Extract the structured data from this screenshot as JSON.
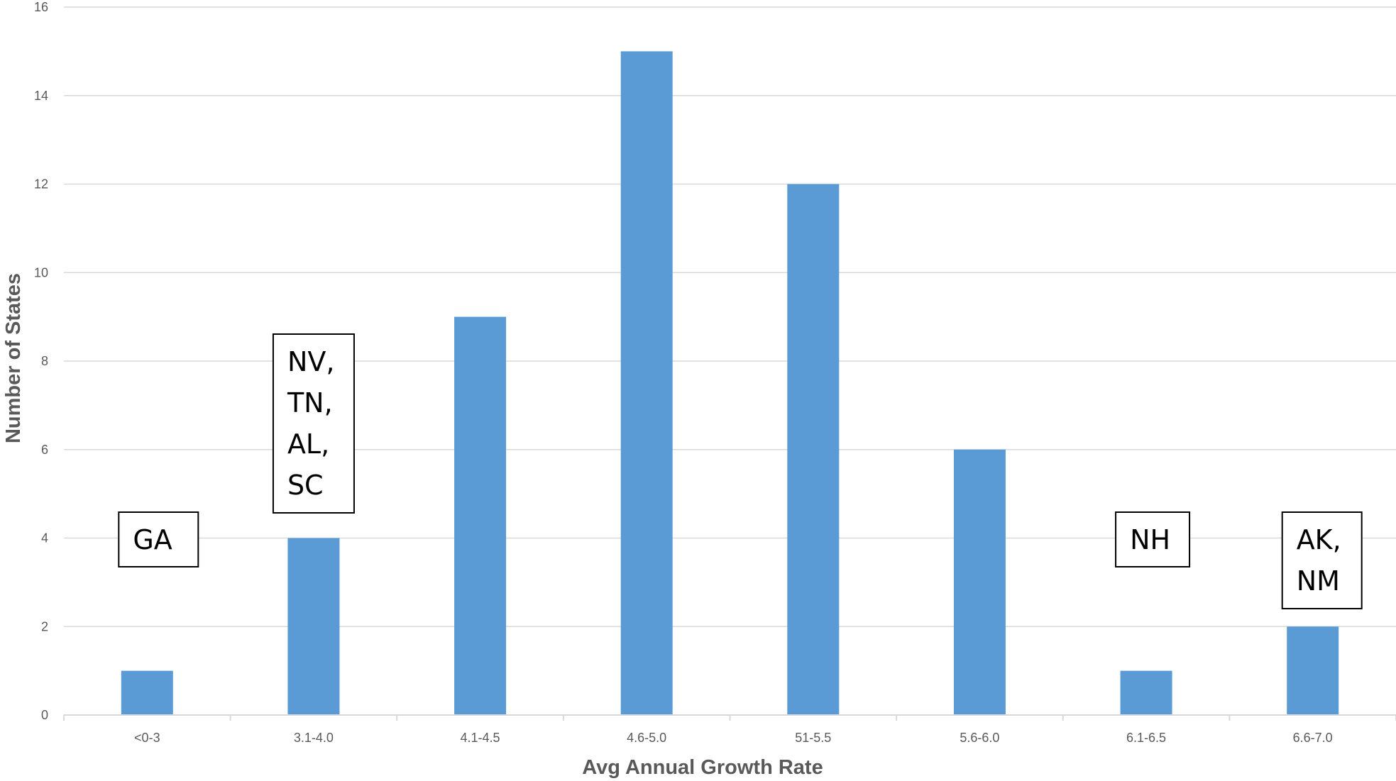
{
  "chart_data": {
    "type": "bar",
    "categories": [
      "<0-3",
      "3.1-4.0",
      "4.1-4.5",
      "4.6-5.0",
      "51-5.5",
      "5.6-6.0",
      "6.1-6.5",
      "6.6-7.0"
    ],
    "values": [
      1,
      4,
      9,
      15,
      12,
      6,
      1,
      2
    ],
    "xlabel": "Avg Annual Growth Rate",
    "ylabel": "Number  of States",
    "ylim": [
      0,
      16
    ],
    "ytick_labels": [
      "0",
      "2",
      "4",
      "6",
      "8",
      "10",
      "12",
      "14",
      "16"
    ],
    "grid": true,
    "legend": "none",
    "bar_color": "#5b9bd5",
    "annotations": [
      {
        "category": "<0-3",
        "lines": [
          "GA"
        ]
      },
      {
        "category": "3.1-4.0",
        "lines": [
          "NV,",
          "TN,",
          "AL,",
          "SC"
        ]
      },
      {
        "category": "6.1-6.5",
        "lines": [
          "NH"
        ]
      },
      {
        "category": "6.6-7.0",
        "lines": [
          "AK,",
          "NM"
        ]
      }
    ]
  }
}
